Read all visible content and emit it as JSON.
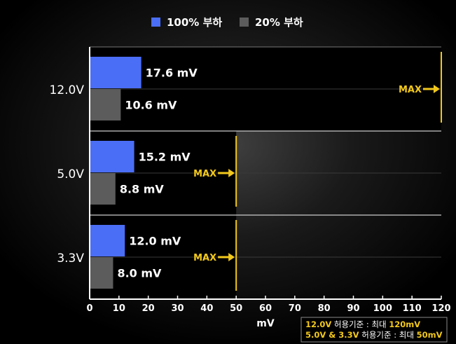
{
  "chart_data": {
    "type": "bar",
    "orientation": "horizontal",
    "categories": [
      "12.0V",
      "5.0V",
      "3.3V"
    ],
    "series": [
      {
        "name": "100% 부하",
        "values": [
          17.6,
          15.2,
          12.0
        ],
        "labels": [
          "17.6 mV",
          "15.2 mV",
          "12.0 mV"
        ]
      },
      {
        "name": "20% 부하",
        "values": [
          10.6,
          8.8,
          8.0
        ],
        "labels": [
          "10.6 mV",
          "8.8 mV",
          "8.0 mV"
        ]
      }
    ],
    "limits": [
      120,
      50,
      50
    ],
    "limit_label": "MAX",
    "xlabel": "mV",
    "xlim": [
      0,
      120
    ],
    "xticks": [
      0,
      10,
      20,
      30,
      40,
      50,
      60,
      70,
      80,
      90,
      100,
      110,
      120
    ],
    "legend_position": "top-center",
    "note": {
      "line1": {
        "prefix": "12.0V",
        "middle": " 허용기준 : 최대 ",
        "value": "120mV"
      },
      "line2": {
        "prefix": "5.0V & 3.3V",
        "middle": " 허용기준 : 최대 ",
        "value": "50mV"
      }
    }
  },
  "colors": {
    "series_100": "#4b6ef6",
    "series_20": "#5c5c5c",
    "max_marker": "#f2c81c",
    "axis": "#ffffff",
    "background": "#000000"
  }
}
